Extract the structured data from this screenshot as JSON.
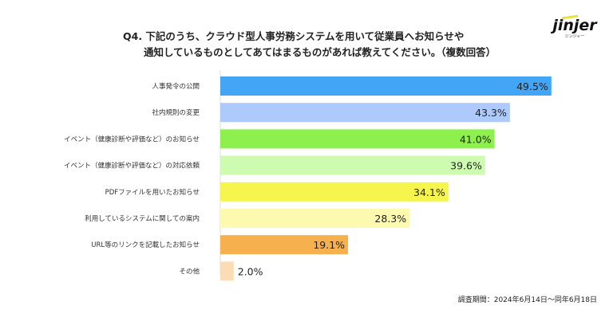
{
  "title": {
    "line1": "Q4. 下記のうち、クラウド型人事労務システムを用いて従業員へお知らせや",
    "line2": "通知しているものとしてあてはまるものがあれば教えてください。（複数回答）"
  },
  "logo": {
    "wordmark": "jinjer",
    "sub": "ジンジャー"
  },
  "period": "調査期間：2024年6月14日〜同年6月18日",
  "chart_data": {
    "type": "bar",
    "orientation": "horizontal",
    "categories": [
      "人事発令の公開",
      "社内規則の変更",
      "イベント（健康診断や評価など）のお知らせ",
      "イベント（健康診断や評価など）の対応依頼",
      "PDFファイルを用いたお知らせ",
      "利用しているシステムに関しての案内",
      "URL等のリンクを記載したお知らせ",
      "その他"
    ],
    "values": [
      49.5,
      43.3,
      41.0,
      39.6,
      34.1,
      28.3,
      19.1,
      2.0
    ],
    "labels": [
      "49.5%",
      "43.3%",
      "41.0%",
      "39.6%",
      "34.1%",
      "28.3%",
      "19.1%",
      "2.0%"
    ],
    "colors": [
      "#42a5f5",
      "#aec9fb",
      "#8ef04c",
      "#cdfcb0",
      "#f5f54e",
      "#fdfab0",
      "#f6b04e",
      "#fcdcb4"
    ],
    "xlim": [
      0,
      50
    ],
    "grid": false
  }
}
